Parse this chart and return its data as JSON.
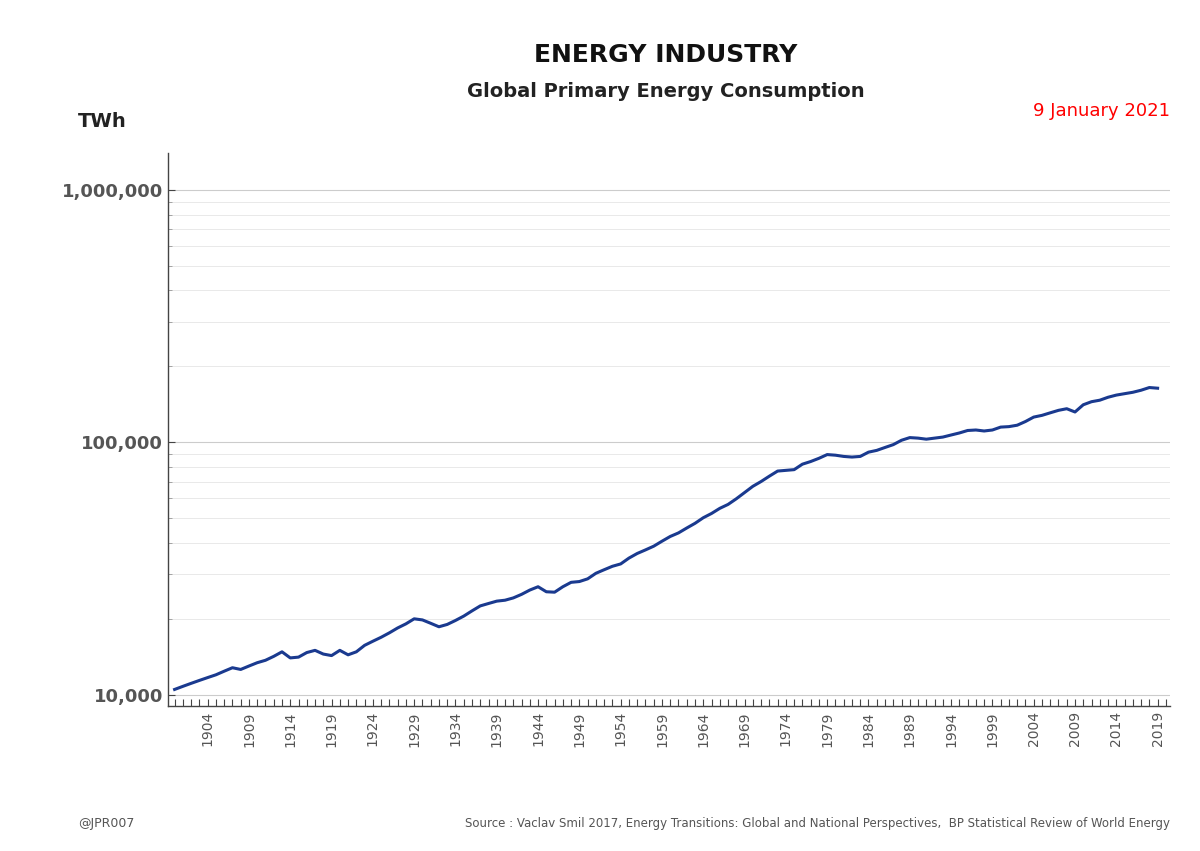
{
  "title_line1": "ENERGY INDUSTRY",
  "title_line2": "Global Primary Energy Consumption",
  "ylabel": "TWh",
  "date_label": "9 January 2021",
  "source_label": "Source : Vaclav Smil 2017, Energy Transitions: Global and National Perspectives,  BP Statistical Review of World Energy",
  "credit_label": "@JPR007",
  "line_color": "#1a3a8f",
  "line_width": 2.2,
  "background_color": "#ffffff",
  "yticks": [
    10000,
    100000,
    1000000
  ],
  "ytick_labels": [
    "10,000",
    "100,000",
    "1,000,000"
  ],
  "ylim_log": [
    9000,
    1400000
  ],
  "years": [
    1900,
    1901,
    1902,
    1903,
    1904,
    1905,
    1906,
    1907,
    1908,
    1909,
    1910,
    1911,
    1912,
    1913,
    1914,
    1915,
    1916,
    1917,
    1918,
    1919,
    1920,
    1921,
    1922,
    1923,
    1924,
    1925,
    1926,
    1927,
    1928,
    1929,
    1930,
    1931,
    1932,
    1933,
    1934,
    1935,
    1936,
    1937,
    1938,
    1939,
    1940,
    1941,
    1942,
    1943,
    1944,
    1945,
    1946,
    1947,
    1948,
    1949,
    1950,
    1951,
    1952,
    1953,
    1954,
    1955,
    1956,
    1957,
    1958,
    1959,
    1960,
    1961,
    1962,
    1963,
    1964,
    1965,
    1966,
    1967,
    1968,
    1969,
    1970,
    1971,
    1972,
    1973,
    1974,
    1975,
    1976,
    1977,
    1978,
    1979,
    1980,
    1981,
    1982,
    1983,
    1984,
    1985,
    1986,
    1987,
    1988,
    1989,
    1990,
    1991,
    1992,
    1993,
    1994,
    1995,
    1996,
    1997,
    1998,
    1999,
    2000,
    2001,
    2002,
    2003,
    2004,
    2005,
    2006,
    2007,
    2008,
    2009,
    2010,
    2011,
    2012,
    2013,
    2014,
    2015,
    2016,
    2017,
    2018,
    2019
  ],
  "values": [
    10500,
    10800,
    11100,
    11400,
    11700,
    12000,
    12400,
    12800,
    12600,
    13000,
    13400,
    13700,
    14200,
    14800,
    14000,
    14100,
    14700,
    15000,
    14500,
    14300,
    15000,
    14400,
    14800,
    15700,
    16300,
    16900,
    17600,
    18400,
    19100,
    20000,
    19800,
    19200,
    18600,
    19000,
    19700,
    20500,
    21500,
    22500,
    23000,
    23500,
    23700,
    24200,
    25000,
    26000,
    26800,
    25600,
    25500,
    26800,
    27900,
    28100,
    28800,
    30300,
    31300,
    32300,
    33000,
    34800,
    36300,
    37500,
    38800,
    40600,
    42400,
    43800,
    45800,
    47800,
    50300,
    52300,
    54800,
    56800,
    59800,
    63300,
    67000,
    70000,
    73500,
    77000,
    77500,
    78000,
    82000,
    84000,
    86500,
    89500,
    89000,
    88000,
    87500,
    88000,
    91500,
    93000,
    95500,
    98000,
    102000,
    104500,
    104000,
    103000,
    104000,
    105000,
    107000,
    109000,
    111500,
    112000,
    111000,
    112000,
    115000,
    115500,
    117000,
    121000,
    126000,
    128000,
    131000,
    134000,
    136000,
    132000,
    141000,
    145000,
    147000,
    151000,
    154000,
    156000,
    158000,
    161000,
    165000,
    164000
  ]
}
